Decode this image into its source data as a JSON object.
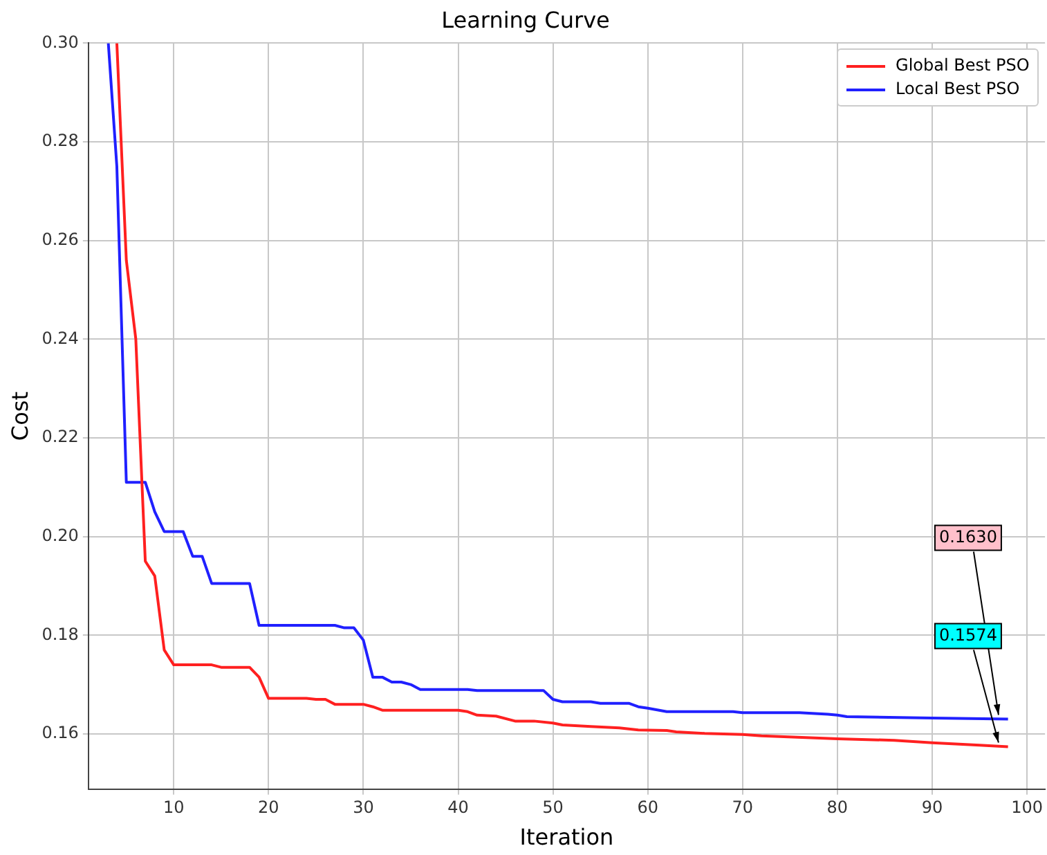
{
  "chart_data": {
    "type": "line",
    "title": "Learning Curve",
    "xlabel": "Iteration",
    "ylabel": "Cost",
    "xlim": [
      1,
      101.9
    ],
    "xticks": [
      10,
      20,
      30,
      40,
      50,
      60,
      70,
      80,
      90,
      100
    ],
    "ylim": [
      0.1488,
      0.3
    ],
    "yticks": [
      0.16,
      0.18,
      {
        "value": 0.2,
        "label": "0.20"
      },
      0.22,
      0.24,
      0.26,
      0.28,
      {
        "value": 0.3,
        "label": "0.30"
      }
    ],
    "grid": true,
    "legend": "top right",
    "line_style": "solid",
    "marker": "none",
    "series": [
      {
        "name": "Global Best PSO",
        "color": "#ff2020",
        "x": [
          4,
          5,
          6,
          7,
          8,
          9,
          10,
          14,
          15,
          18,
          19,
          20,
          24,
          25,
          26,
          27,
          30,
          31,
          32,
          40,
          41,
          42,
          44,
          46,
          48,
          50,
          51,
          54,
          57,
          59,
          62,
          63,
          66,
          70,
          72,
          80,
          86,
          90,
          95,
          98
        ],
        "values": [
          0.3,
          0.256,
          0.24,
          0.195,
          0.192,
          0.177,
          0.174,
          0.174,
          0.1735,
          0.1735,
          0.1715,
          0.1672,
          0.1672,
          0.167,
          0.167,
          0.166,
          0.166,
          0.1655,
          0.1648,
          0.1648,
          0.1645,
          0.1638,
          0.1636,
          0.1626,
          0.1626,
          0.1622,
          0.1618,
          0.1615,
          0.1612,
          0.1608,
          0.1607,
          0.1604,
          0.1601,
          0.1599,
          0.1596,
          0.159,
          0.1587,
          0.1582,
          0.1577,
          0.1574
        ]
      },
      {
        "name": "Local Best PSO",
        "color": "#2020ff",
        "x": [
          3.1,
          4,
          5,
          6,
          7,
          8,
          9,
          10,
          11,
          12,
          13,
          14,
          18,
          19,
          27,
          28,
          29,
          30,
          31,
          32,
          33,
          34,
          35,
          36,
          41,
          42,
          49,
          50,
          51,
          54,
          55,
          58,
          59,
          60,
          62,
          69,
          70,
          76,
          79,
          80,
          81,
          90,
          98
        ],
        "values": [
          0.3,
          0.275,
          0.211,
          0.211,
          0.211,
          0.205,
          0.201,
          0.201,
          0.201,
          0.196,
          0.196,
          0.1905,
          0.1905,
          0.182,
          0.182,
          0.1815,
          0.1815,
          0.179,
          0.1715,
          0.1715,
          0.1705,
          0.1705,
          0.17,
          0.169,
          0.169,
          0.1688,
          0.1688,
          0.167,
          0.1665,
          0.1665,
          0.1662,
          0.1662,
          0.1655,
          0.1652,
          0.1645,
          0.1645,
          0.1643,
          0.1643,
          0.164,
          0.1638,
          0.1635,
          0.1632,
          0.163
        ]
      }
    ],
    "annotations": [
      {
        "text": "0.1630",
        "x": 97,
        "y": 0.163
      },
      {
        "text": "0.1574",
        "x": 97,
        "y": 0.1574
      }
    ]
  }
}
